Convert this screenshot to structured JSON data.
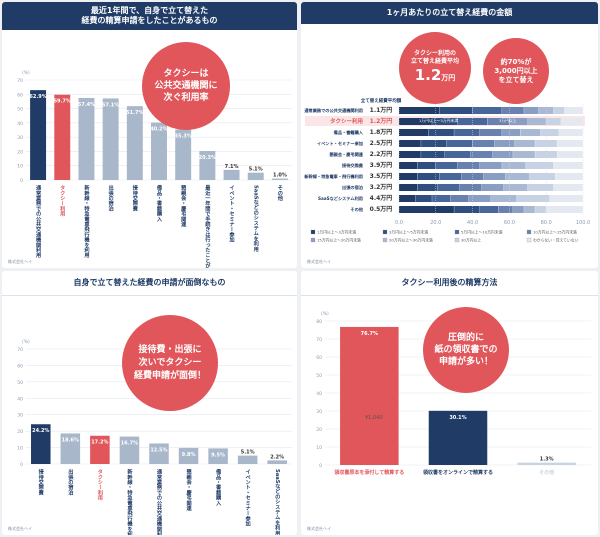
{
  "colors": {
    "navy": "#1f3b66",
    "red": "#e0565b",
    "gray": "#a9b7cb",
    "light": "#c9d4e2",
    "axis": "#8a9ab3"
  },
  "panel1": {
    "title": "最近1年間で、自身で立て替えた\n経費の精算申請をしたことがあるもの",
    "bubble": "タクシーは\n公共交通機関に\n次ぐ利用率",
    "unit": "(%)",
    "source": "株式会社ヘイ"
  },
  "panel2": {
    "title": "1ヶ月あたりの立て替え経費の金額",
    "bubble1": {
      "line1": "タクシー利用の",
      "line2": "立て替え経費平均",
      "value": "1.2",
      "unit": "万円"
    },
    "bubble2": {
      "line1": "約70%が",
      "line2": "3,000円以上",
      "line3": "を立て替え"
    },
    "avg_label": "立て替え経費平均額",
    "range1": "1万円以上〜3万円未満",
    "range2": "3万円以上",
    "legend": [
      "1万円以上〜3万円未満",
      "3万円以上〜5万円未満",
      "5万円以上〜10万円未満",
      "10万円以上〜15万円未満",
      "15万円以上〜20万円未満",
      "20万円以上〜30万円未満",
      "30万円以上",
      "わからない・覚えていない"
    ],
    "source": "株式会社ヘイ"
  },
  "panel3": {
    "title": "自身で立て替えた経費の申請が面倒なもの",
    "bubble": "接待費・出張に\n次いでタクシー\n経費申請が面倒！",
    "unit": "(%)",
    "source": "株式会社ヘイ"
  },
  "panel4": {
    "title": "タクシー利用後の精算方法",
    "bubble": "圧倒的に\n紙の領収書での\n申請が多い！",
    "unit": "(%)",
    "receipt_amount": "¥1,040",
    "source": "株式会社ヘイ"
  },
  "chart_data": [
    {
      "type": "bar",
      "title": "最近1年間で、自身で立て替えた経費の精算申請をしたことがあるもの",
      "ylabel": "(%)",
      "ylim": [
        0,
        70
      ],
      "yticks": [
        0,
        10,
        20,
        30,
        40,
        50,
        60,
        70
      ],
      "categories": [
        "通常業務での公共交通機関利用",
        "タクシー利用",
        "新幹線・特急電車飛行機を利用",
        "出張の宿泊",
        "接待交際費",
        "備品・書籍購入",
        "懇親会・慶弔関連",
        "最近一年間で手続きは行ったことがない",
        "イベント・セミナー参加",
        "SaaSなどのシステムを利用",
        "その他"
      ],
      "values": [
        62.9,
        59.7,
        57.4,
        57.1,
        51.7,
        40.2,
        35.3,
        20.3,
        7.1,
        5.1,
        1.0
      ],
      "value_labels": [
        "62.9%",
        "59.7%",
        "57.4%",
        "57.1%",
        "51.7%",
        "40.2%",
        "35.3%",
        "20.3%",
        "7.1%",
        "5.1%",
        "1.0%"
      ]
    },
    {
      "type": "bar",
      "title": "1ヶ月あたりの立て替え経費の金額",
      "orientation": "horizontal",
      "xlim": [
        0,
        100
      ],
      "xticks": [
        0.0,
        20.0,
        40.0,
        60.0,
        80.0,
        100.0
      ],
      "categories": [
        "通常業務での公共交通機関利用",
        "タクシー利用",
        "備品・書籍購入",
        "イベント・セミナー参加",
        "懇親会・慶弔関連",
        "接待交際費",
        "新幹線・特急電車・飛行機利用",
        "出張の宿泊",
        "SaaSなどシステム利用",
        "その他"
      ],
      "averages": [
        "1.1万円",
        "1.2万円",
        "1.8万円",
        "2.5万円",
        "2.2万円",
        "3.9万円",
        "3.5万円",
        "3.2万円",
        "4.4万円",
        "0.5万円"
      ],
      "series": [
        {
          "name": "1万円以上〜3万円未満",
          "values": [
            22,
            18,
            16,
            12,
            12,
            10,
            10,
            10,
            9,
            30
          ]
        },
        {
          "name": "3万円以上〜5万円未満",
          "values": [
            18,
            14,
            14,
            14,
            13,
            10,
            12,
            11,
            9,
            14
          ]
        },
        {
          "name": "5万円以上〜10万円未満",
          "values": [
            16,
            16,
            14,
            14,
            14,
            12,
            12,
            12,
            10,
            10
          ]
        },
        {
          "name": "10万円以上〜15万円未満",
          "values": [
            12,
            12,
            12,
            12,
            12,
            12,
            12,
            12,
            10,
            8
          ]
        },
        {
          "name": "15万円以上〜20万円未満",
          "values": [
            8,
            10,
            10,
            11,
            11,
            12,
            12,
            12,
            12,
            6
          ]
        },
        {
          "name": "20万円以上〜30万円未満",
          "values": [
            8,
            10,
            11,
            11,
            12,
            13,
            13,
            13,
            14,
            6
          ]
        },
        {
          "name": "30万円以上",
          "values": [
            6,
            8,
            10,
            12,
            12,
            15,
            14,
            14,
            18,
            6
          ]
        },
        {
          "name": "わからない・覚えていない",
          "values": [
            10,
            12,
            13,
            14,
            14,
            16,
            15,
            16,
            18,
            20
          ]
        }
      ]
    },
    {
      "type": "bar",
      "title": "自身で立て替えた経費の申請が面倒なもの",
      "ylabel": "(%)",
      "ylim": [
        0,
        70
      ],
      "yticks": [
        0,
        10,
        20,
        30,
        40,
        50,
        60,
        70
      ],
      "categories": [
        "接待交際費",
        "出張の宿泊",
        "タクシー利用",
        "新幹線・特急電車飛行機を利用",
        "通常業務での公共交通機関利用",
        "懇親会・慶弔関連",
        "備品・書籍購入",
        "イベント・セミナー参加",
        "SaaSなどのシステムを利用"
      ],
      "values": [
        24.2,
        18.6,
        17.2,
        16.7,
        12.5,
        9.8,
        9.5,
        5.1,
        2.2
      ],
      "value_labels": [
        "24.2%",
        "18.6%",
        "17.2%",
        "16.7%",
        "12.5%",
        "9.8%",
        "9.5%",
        "5.1%",
        "2.2%"
      ]
    },
    {
      "type": "bar",
      "title": "タクシー利用後の精算方法",
      "ylabel": "(%)",
      "ylim": [
        0,
        80
      ],
      "yticks": [
        0,
        10,
        20,
        30,
        40,
        50,
        60,
        70,
        80
      ],
      "categories": [
        "領収書原本を添付して精算する",
        "領収書をオンラインで精算する",
        "その他"
      ],
      "values": [
        76.7,
        30.1,
        1.3
      ],
      "value_labels": [
        "76.7%",
        "30.1%",
        "1.3%"
      ]
    }
  ]
}
